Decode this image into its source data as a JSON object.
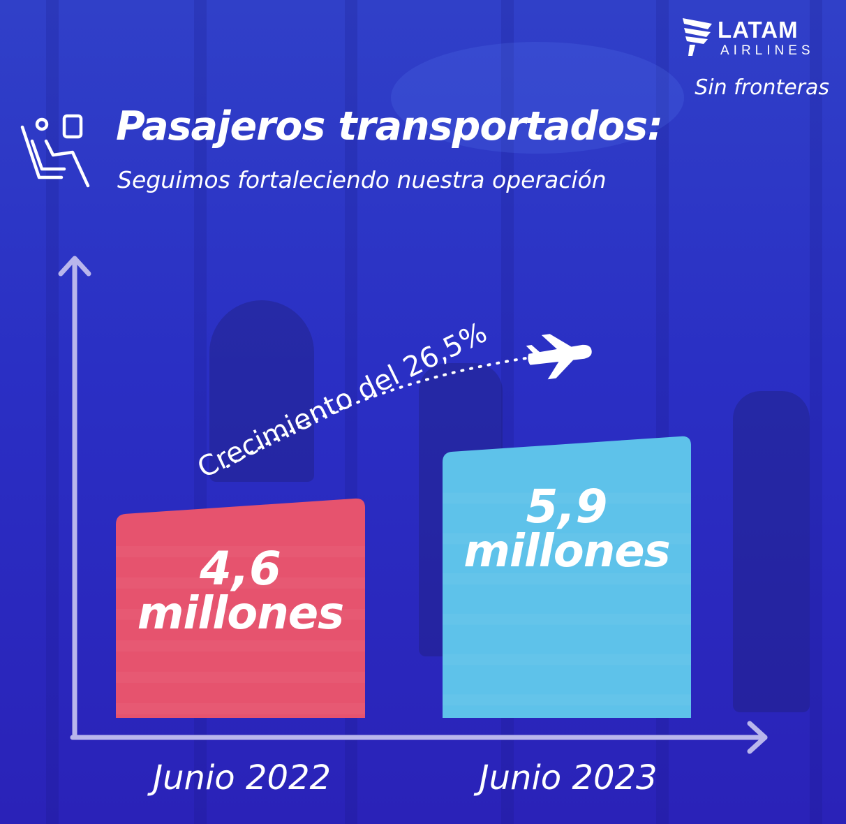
{
  "brand": {
    "name": "LATAM",
    "sub": "AIRLINES",
    "tagline": "Sin fronteras"
  },
  "header": {
    "title": "Pasajeros transportados:",
    "subtitle": "Seguimos fortaleciendo nuestra operación",
    "icon": "airplane-seat-icon"
  },
  "annotation": {
    "growth_text": "Crecimiento del 26,5%",
    "icon": "airplane-icon"
  },
  "colors": {
    "background": "#2a2fc4",
    "bar_2022": "#e6536e",
    "bar_2023": "#5ec2ea",
    "axis": "#b9b6ec",
    "text": "#ffffff"
  },
  "chart_data": {
    "type": "bar",
    "categories": [
      "Junio 2022",
      "Junio 2023"
    ],
    "values": [
      4.6,
      5.9
    ],
    "value_labels": [
      {
        "number": "4,6",
        "unit": "millones"
      },
      {
        "number": "5,9",
        "unit": "millones"
      }
    ],
    "title": "Pasajeros transportados:",
    "subtitle": "Seguimos fortaleciendo nuestra operación",
    "xlabel": "",
    "ylabel": "",
    "annotation": "Crecimiento del 26,5%",
    "grid": false,
    "legend": "none"
  }
}
